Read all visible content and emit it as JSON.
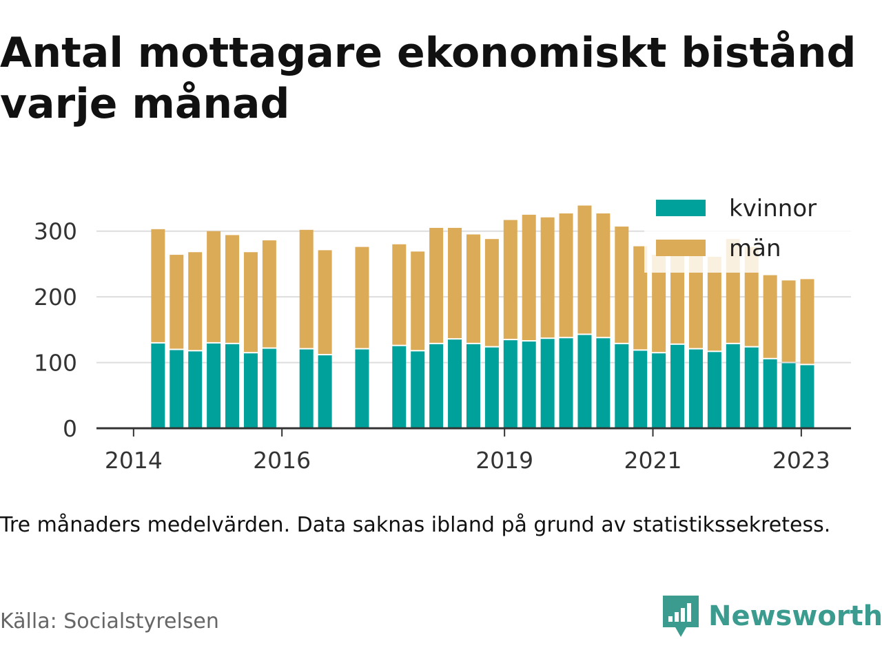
{
  "title": "Antal mottagare ekonomiskt bistånd varje månad",
  "note": "Tre månaders medelvärden. Data saknas ibland på grund av statistikssekretess.",
  "source": "Källa: Socialstyrelsen",
  "brand": {
    "name": "Newsworthy",
    "icon": "newsworthy-logo-icon",
    "color": "#3a9b8e"
  },
  "colors": {
    "kvinnor": "#00a19a",
    "man": "#dcab57",
    "grid": "#dddddd",
    "axis": "#333333"
  },
  "chart_data": {
    "type": "bar",
    "stacked": true,
    "title": "",
    "xlabel": "",
    "ylabel": "",
    "ylim": [
      0,
      350
    ],
    "yticks": [
      0,
      100,
      200,
      300
    ],
    "xticks": [
      {
        "label": "2014",
        "x": 2014.0
      },
      {
        "label": "2016",
        "x": 2016.0
      },
      {
        "label": "2019",
        "x": 2019.0
      },
      {
        "label": "2021",
        "x": 2021.0
      },
      {
        "label": "2023",
        "x": 2023.0
      }
    ],
    "xlim": [
      2013.5,
      2023.67
    ],
    "legend_position": "top-right",
    "x": [
      2014.33,
      2014.58,
      2014.83,
      2015.08,
      2015.33,
      2015.58,
      2015.83,
      2016.33,
      2016.58,
      2017.08,
      2017.58,
      2017.83,
      2018.08,
      2018.33,
      2018.58,
      2018.83,
      2019.08,
      2019.33,
      2019.58,
      2019.83,
      2020.08,
      2020.33,
      2020.58,
      2020.83,
      2021.08,
      2021.33,
      2021.58,
      2021.83,
      2022.08,
      2022.33,
      2022.58,
      2022.83,
      2023.08
    ],
    "series": [
      {
        "name": "kvinnor",
        "values": [
          129,
          119,
          117,
          129,
          128,
          114,
          121,
          120,
          111,
          120,
          125,
          117,
          128,
          135,
          128,
          123,
          134,
          132,
          136,
          137,
          142,
          137,
          128,
          118,
          114,
          127,
          120,
          116,
          128,
          123,
          105,
          99,
          96
        ]
      },
      {
        "name": "män",
        "values": [
          174,
          145,
          151,
          171,
          166,
          154,
          165,
          182,
          160,
          156,
          155,
          152,
          177,
          170,
          167,
          165,
          183,
          193,
          185,
          190,
          197,
          190,
          179,
          159,
          150,
          140,
          145,
          145,
          160,
          153,
          128,
          126,
          131
        ]
      }
    ]
  }
}
